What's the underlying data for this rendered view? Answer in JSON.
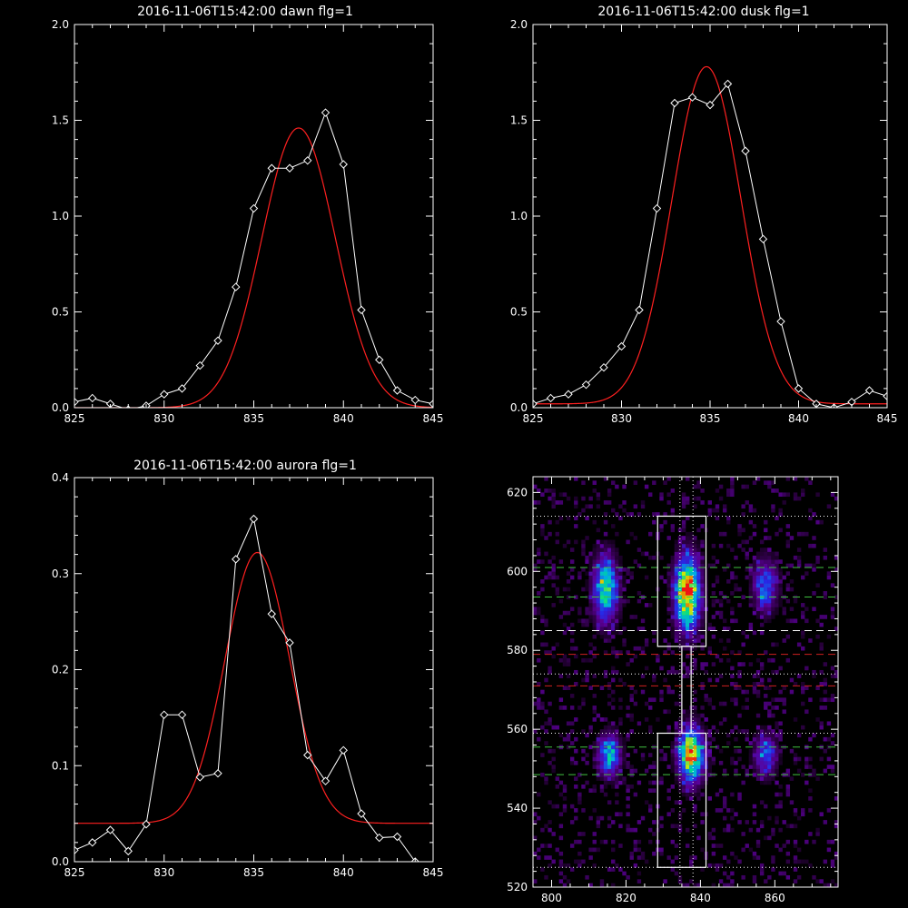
{
  "colors": {
    "background": "#000000",
    "axes": "#ffffff",
    "data": "#ffffff",
    "fit": "#ff2020",
    "green_line": "#40c040",
    "red_line": "#d02020"
  },
  "chart_data": [
    {
      "type": "line",
      "title": "2016-11-06T15:42:00 dawn flg=1",
      "xlim": [
        825,
        845
      ],
      "ylim": [
        0,
        2.0
      ],
      "xticks": [
        "825",
        "830",
        "835",
        "840",
        "845"
      ],
      "yticks": [
        "0.0",
        "0.5",
        "1.0",
        "1.5",
        "2.0"
      ],
      "series": [
        {
          "role": "data",
          "marker": "diamond",
          "x": [
            825,
            826,
            827,
            828,
            829,
            830,
            831,
            832,
            833,
            834,
            835,
            836,
            837,
            838,
            839,
            840,
            841,
            842,
            843,
            844,
            845
          ],
          "y": [
            0.03,
            0.05,
            0.02,
            -0.01,
            0.01,
            0.07,
            0.1,
            0.22,
            0.35,
            0.63,
            1.04,
            1.25,
            1.25,
            1.29,
            1.54,
            1.27,
            0.51,
            0.25,
            0.09,
            0.04,
            0.02
          ]
        },
        {
          "role": "fit",
          "gauss": {
            "amp": 1.46,
            "center": 837.5,
            "sigma": 2.05,
            "base": 0.0
          }
        }
      ]
    },
    {
      "type": "line",
      "title": "2016-11-06T15:42:00 dusk flg=1",
      "xlim": [
        825,
        845
      ],
      "ylim": [
        0,
        2.0
      ],
      "xticks": [
        "825",
        "830",
        "835",
        "840",
        "845"
      ],
      "yticks": [
        "0.0",
        "0.5",
        "1.0",
        "1.5",
        "2.0"
      ],
      "series": [
        {
          "role": "data",
          "marker": "diamond",
          "x": [
            825,
            826,
            827,
            828,
            829,
            830,
            831,
            832,
            833,
            834,
            835,
            836,
            837,
            838,
            839,
            840,
            841,
            842,
            843,
            844,
            845
          ],
          "y": [
            0.02,
            0.05,
            0.07,
            0.12,
            0.21,
            0.32,
            0.51,
            1.04,
            1.59,
            1.62,
            1.58,
            1.69,
            1.34,
            0.88,
            0.45,
            0.1,
            0.02,
            0.0,
            0.03,
            0.09,
            0.06
          ]
        },
        {
          "role": "fit",
          "gauss": {
            "amp": 1.76,
            "center": 834.8,
            "sigma": 1.95,
            "base": 0.02
          }
        }
      ]
    },
    {
      "type": "line",
      "title": "2016-11-06T15:42:00 aurora flg=1",
      "xlim": [
        825,
        845
      ],
      "ylim": [
        0,
        0.4
      ],
      "xticks": [
        "825",
        "830",
        "835",
        "840",
        "845"
      ],
      "yticks": [
        "0.0",
        "0.1",
        "0.2",
        "0.3",
        "0.4"
      ],
      "series": [
        {
          "role": "data",
          "marker": "diamond",
          "x": [
            825,
            826,
            827,
            828,
            829,
            830,
            831,
            832,
            833,
            834,
            835,
            836,
            837,
            838,
            839,
            840,
            841,
            842,
            843,
            844,
            845
          ],
          "y": [
            0.012,
            0.02,
            0.033,
            0.011,
            0.039,
            0.153,
            0.153,
            0.088,
            0.092,
            0.315,
            0.357,
            0.258,
            0.228,
            0.111,
            0.084,
            0.116,
            0.05,
            0.025,
            0.026,
            0.0,
            -0.01
          ]
        },
        {
          "role": "fit",
          "gauss": {
            "amp": 0.282,
            "center": 835.2,
            "sigma": 1.8,
            "base": 0.04
          }
        }
      ]
    },
    {
      "type": "heatmap",
      "title": "",
      "xlim": [
        795,
        877
      ],
      "ylim": [
        520,
        624
      ],
      "xticks": [
        "800",
        "820",
        "840",
        "860"
      ],
      "yticks": [
        "520",
        "540",
        "560",
        "580",
        "600",
        "620"
      ],
      "blobs": [
        {
          "x": 814,
          "y": 595,
          "sx": 2.2,
          "sy": 5.5,
          "amp": 0.65
        },
        {
          "x": 836,
          "y": 594,
          "sx": 2.2,
          "sy": 6.0,
          "amp": 1.0
        },
        {
          "x": 857,
          "y": 596,
          "sx": 2.2,
          "sy": 4.5,
          "amp": 0.4
        },
        {
          "x": 815,
          "y": 553,
          "sx": 2.0,
          "sy": 3.5,
          "amp": 0.55
        },
        {
          "x": 837,
          "y": 553,
          "sx": 2.2,
          "sy": 4.5,
          "amp": 0.9
        },
        {
          "x": 857,
          "y": 553,
          "sx": 2.0,
          "sy": 3.5,
          "amp": 0.4
        }
      ],
      "boxes": [
        {
          "x0": 828.5,
          "x1": 841.5,
          "y0": 581,
          "y1": 614
        },
        {
          "x0": 828.5,
          "x1": 841.5,
          "y0": 525,
          "y1": 559
        },
        {
          "x0": 835.0,
          "x1": 837.5,
          "y0": 559,
          "y1": 581
        }
      ],
      "hlines": [
        {
          "y": 614,
          "style": "dotted",
          "color": "#ffffff"
        },
        {
          "y": 601,
          "style": "dashed",
          "color": "#40c040"
        },
        {
          "y": 593.5,
          "style": "dashed",
          "color": "#40c040"
        },
        {
          "y": 585,
          "style": "dashed",
          "color": "#ffffff"
        },
        {
          "y": 579,
          "style": "dashed",
          "color": "#d02020"
        },
        {
          "y": 574,
          "style": "dotted",
          "color": "#ffffff"
        },
        {
          "y": 571,
          "style": "dashed",
          "color": "#d02020"
        },
        {
          "y": 559,
          "style": "dotted",
          "color": "#ffffff"
        },
        {
          "y": 555.5,
          "style": "dashed",
          "color": "#40c040"
        },
        {
          "y": 548.5,
          "style": "dashed",
          "color": "#40c040"
        },
        {
          "y": 525,
          "style": "dotted",
          "color": "#ffffff"
        }
      ],
      "vlines": [
        {
          "x": 834.5,
          "style": "dotted",
          "color": "#ffffff"
        },
        {
          "x": 838.0,
          "style": "dotted",
          "color": "#ffffff"
        }
      ]
    }
  ]
}
